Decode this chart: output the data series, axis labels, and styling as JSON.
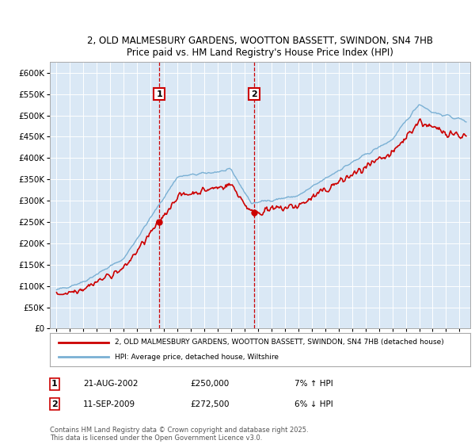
{
  "title1": "2, OLD MALMESBURY GARDENS, WOOTTON BASSETT, SWINDON, SN4 7HB",
  "title2": "Price paid vs. HM Land Registry's House Price Index (HPI)",
  "yticks": [
    0,
    50000,
    100000,
    150000,
    200000,
    250000,
    300000,
    350000,
    400000,
    450000,
    500000,
    550000,
    600000
  ],
  "ylim": [
    0,
    625000
  ],
  "xlim_start": 1994.5,
  "xlim_end": 2025.8,
  "marker1_x": 2002.64,
  "marker1_y": 250000,
  "marker1_label": "21-AUG-2002",
  "marker1_price": "£250,000",
  "marker1_hpi": "7% ↑ HPI",
  "marker2_x": 2009.7,
  "marker2_y": 272500,
  "marker2_label": "11-SEP-2009",
  "marker2_price": "£272,500",
  "marker2_hpi": "6% ↓ HPI",
  "property_color": "#cc0000",
  "hpi_color": "#7ab0d4",
  "background_color": "#dae8f5",
  "legend_line1": "2, OLD MALMESBURY GARDENS, WOOTTON BASSETT, SWINDON, SN4 7HB (detached house)",
  "legend_line2": "HPI: Average price, detached house, Wiltshire",
  "footnote": "Contains HM Land Registry data © Crown copyright and database right 2025.\nThis data is licensed under the Open Government Licence v3.0."
}
